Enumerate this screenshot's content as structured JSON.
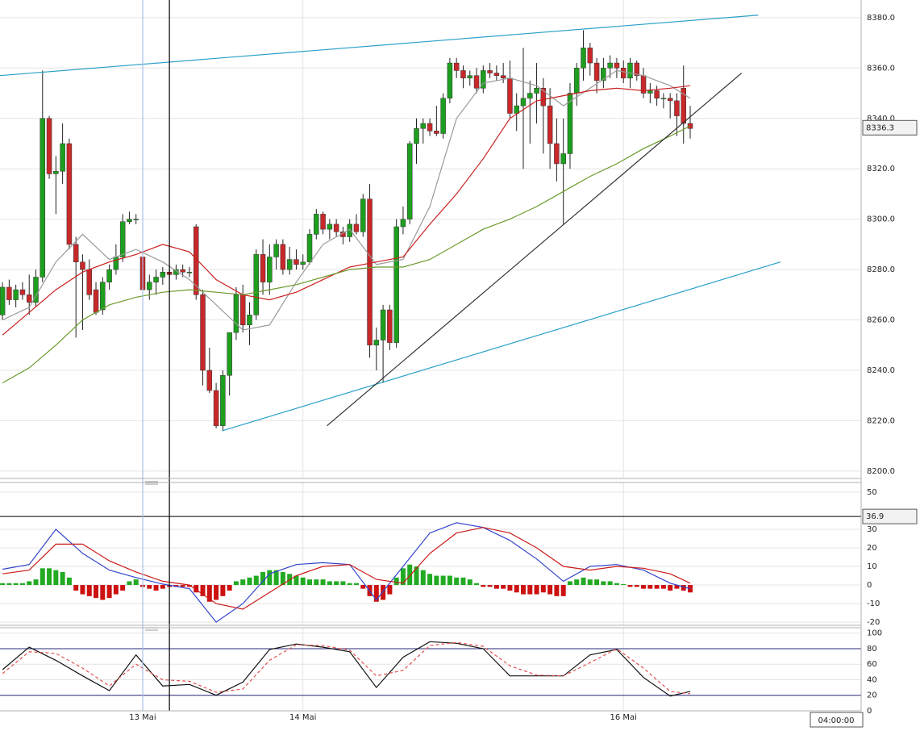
{
  "chart_data": [
    {
      "type": "candlestick",
      "x": [
        0,
        1,
        2,
        3,
        4,
        5,
        6,
        7,
        8,
        9,
        10,
        11,
        12,
        13,
        14,
        15,
        16,
        17,
        18,
        19,
        20,
        21,
        22,
        23,
        24,
        25,
        26,
        27,
        28,
        29,
        30,
        31,
        32,
        33,
        34,
        35,
        36,
        37,
        38,
        39,
        40,
        41,
        42,
        43,
        44,
        45,
        46,
        47,
        48,
        49,
        50,
        51,
        52,
        53,
        54,
        55,
        56,
        57,
        58,
        59,
        60,
        61,
        62,
        63,
        64,
        65,
        66,
        67,
        68,
        69,
        70,
        71,
        72,
        73,
        74,
        75,
        76,
        77,
        78,
        79,
        80,
        81,
        82,
        83,
        84,
        85,
        86,
        87,
        88,
        89,
        90,
        91,
        92,
        93,
        94,
        95,
        96,
        97,
        98,
        99,
        100,
        101,
        102,
        103
      ],
      "open": [
        8262,
        8273,
        8268,
        8272,
        8270,
        8267,
        8277,
        8340,
        8318,
        8319,
        8330,
        8290,
        8283,
        8280,
        8272,
        8264,
        8275,
        8280,
        8285,
        8299,
        8300,
        8285,
        8272,
        8275,
        8277,
        8279,
        8278,
        8280,
        8279,
        8297,
        8270,
        8240,
        8232,
        8218,
        8238,
        8255,
        8270,
        8258,
        8262,
        8286,
        8275,
        8285,
        8290,
        8280,
        8284,
        8282,
        8283,
        8294,
        8302,
        8296,
        8298,
        8295,
        8293,
        8298,
        8295,
        8308,
        8250,
        8252,
        8264,
        8251,
        8297,
        8300,
        8330,
        8336,
        8338,
        8335,
        8334,
        8348,
        8362,
        8359,
        8356,
        8357,
        8352,
        8359,
        8358,
        8357,
        8356,
        8342,
        8345,
        8348,
        8350,
        8352,
        8345,
        8330,
        8322,
        8326,
        8350,
        8360,
        8368,
        8362,
        8355,
        8360,
        8362,
        8360,
        8356,
        8362,
        8357,
        8350,
        8351,
        8348,
        8348,
        8347,
        8352,
        8338
      ],
      "high": [
        8275,
        8276,
        8274,
        8275,
        8278,
        8280,
        8359,
        8341,
        8325,
        8338,
        8332,
        8293,
        8286,
        8284,
        8275,
        8277,
        8282,
        8290,
        8302,
        8303,
        8302,
        8293,
        8278,
        8280,
        8281,
        8282,
        8282,
        8282,
        8281,
        8298,
        8272,
        8249,
        8235,
        8240,
        8255,
        8273,
        8274,
        8267,
        8288,
        8292,
        8290,
        8292,
        8292,
        8289,
        8288,
        8286,
        8296,
        8304,
        8303,
        8300,
        8300,
        8297,
        8300,
        8302,
        8310,
        8314,
        8257,
        8266,
        8266,
        8300,
        8305,
        8331,
        8340,
        8340,
        8340,
        8345,
        8350,
        8364,
        8364,
        8361,
        8359,
        8360,
        8361,
        8362,
        8361,
        8362,
        8363,
        8350,
        8368,
        8355,
        8362,
        8356,
        8352,
        8340,
        8340,
        8354,
        8362,
        8375,
        8370,
        8364,
        8364,
        8365,
        8364,
        8363,
        8364,
        8363,
        8360,
        8354,
        8353,
        8350,
        8350,
        8350,
        8361,
        8345
      ],
      "low": [
        8260,
        8266,
        8265,
        8268,
        8262,
        8265,
        8275,
        8316,
        8302,
        8314,
        8288,
        8253,
        8256,
        8268,
        8262,
        8262,
        8272,
        8278,
        8283,
        8298,
        8298,
        8265,
        8268,
        8270,
        8274,
        8276,
        8276,
        8277,
        8277,
        8268,
        8234,
        8231,
        8217,
        8216,
        8230,
        8252,
        8255,
        8250,
        8260,
        8270,
        8270,
        8280,
        8278,
        8278,
        8280,
        8280,
        8282,
        8292,
        8294,
        8292,
        8293,
        8290,
        8291,
        8294,
        8293,
        8245,
        8240,
        8235,
        8248,
        8249,
        8294,
        8298,
        8322,
        8330,
        8333,
        8333,
        8332,
        8346,
        8356,
        8352,
        8353,
        8350,
        8350,
        8356,
        8355,
        8354,
        8340,
        8335,
        8320,
        8330,
        8338,
        8326,
        8320,
        8315,
        8298,
        8320,
        8345,
        8355,
        8357,
        8350,
        8352,
        8356,
        8356,
        8354,
        8352,
        8355,
        8348,
        8346,
        8345,
        8344,
        8340,
        8333,
        8330,
        8332
      ],
      "close": [
        8273,
        8268,
        8272,
        8270,
        8267,
        8277,
        8340,
        8318,
        8319,
        8330,
        8290,
        8283,
        8280,
        8270,
        8263,
        8275,
        8280,
        8285,
        8299,
        8300,
        8300,
        8272,
        8275,
        8277,
        8279,
        8278,
        8280,
        8279,
        8279,
        8270,
        8240,
        8232,
        8218,
        8238,
        8255,
        8270,
        8258,
        8262,
        8286,
        8275,
        8285,
        8290,
        8280,
        8284,
        8282,
        8283,
        8294,
        8302,
        8296,
        8298,
        8295,
        8293,
        8298,
        8295,
        8308,
        8250,
        8252,
        8264,
        8251,
        8297,
        8300,
        8330,
        8336,
        8338,
        8335,
        8334,
        8348,
        8362,
        8359,
        8356,
        8357,
        8352,
        8359,
        8358,
        8357,
        8356,
        8342,
        8345,
        8348,
        8350,
        8352,
        8345,
        8330,
        8322,
        8326,
        8350,
        8360,
        8368,
        8362,
        8355,
        8360,
        8362,
        8360,
        8356,
        8362,
        8357,
        8350,
        8351,
        8348,
        8348,
        8347,
        8341,
        8338,
        8336
      ],
      "up_color": "#1e9e1e",
      "down_color": "#c8282a",
      "series": [
        {
          "color": "#9a9a9a",
          "x": [
            0,
            4,
            8,
            12,
            16,
            20,
            24,
            28,
            32,
            36,
            40,
            44,
            48,
            52,
            56,
            60,
            64,
            68,
            72,
            76,
            80,
            84,
            88,
            92,
            96,
            100,
            103
          ],
          "values": [
            8260,
            8265,
            8283,
            8294,
            8284,
            8288,
            8283,
            8276,
            8266,
            8256,
            8258,
            8275,
            8290,
            8296,
            8282,
            8284,
            8305,
            8340,
            8354,
            8356,
            8353,
            8345,
            8352,
            8359,
            8357,
            8353,
            8348
          ]
        },
        {
          "color": "#cc2020",
          "x": [
            0,
            4,
            8,
            12,
            16,
            20,
            24,
            28,
            32,
            36,
            40,
            44,
            48,
            52,
            56,
            60,
            64,
            68,
            72,
            76,
            80,
            84,
            88,
            92,
            96,
            100,
            103
          ],
          "values": [
            8254,
            8263,
            8272,
            8279,
            8283,
            8286,
            8290,
            8287,
            8276,
            8270,
            8268,
            8271,
            8276,
            8281,
            8283,
            8285,
            8298,
            8310,
            8324,
            8340,
            8347,
            8349,
            8351,
            8352,
            8351,
            8352,
            8353
          ]
        },
        {
          "color": "#6a9a2a",
          "x": [
            0,
            4,
            8,
            12,
            16,
            20,
            24,
            28,
            32,
            36,
            40,
            44,
            48,
            52,
            56,
            60,
            64,
            68,
            72,
            76,
            80,
            84,
            88,
            92,
            96,
            100,
            103
          ],
          "values": [
            8235,
            8241,
            8250,
            8260,
            8266,
            8269,
            8271,
            8272,
            8271,
            8270,
            8272,
            8274,
            8277,
            8280,
            8281,
            8281,
            8284,
            8290,
            8296,
            8300,
            8305,
            8311,
            8317,
            8322,
            8328,
            8333,
            8337
          ]
        }
      ],
      "trendlines": [
        {
          "color": "#2aa0c8",
          "x": [
            -0.37,
            113.2
          ],
          "y": [
            8357,
            8381
          ]
        },
        {
          "color": "#2aa0c8",
          "x": [
            32.9,
            116.5
          ],
          "y": [
            8216,
            8283
          ]
        },
        {
          "color": "#333333",
          "x": [
            48.6,
            110.7
          ],
          "y": [
            8218,
            8358
          ]
        }
      ],
      "vlines": [
        {
          "x": 21,
          "color": "#a8c0e8"
        },
        {
          "x": 25,
          "color": "#000000"
        }
      ],
      "last_price": 8336.3,
      "xlim": [
        -0.374,
        128.6
      ],
      "xticks": [
        {
          "value": 21,
          "label": "13 Mai"
        },
        {
          "value": 45,
          "label": "14 Mai"
        },
        {
          "value": 93,
          "label": "16 Mai"
        }
      ],
      "ylim": [
        8197.4,
        8387
      ],
      "yticks": [
        {
          "value": 8200,
          "label": "8200.0"
        },
        {
          "value": 8220,
          "label": "8220.0"
        },
        {
          "value": 8240,
          "label": "8240.0"
        },
        {
          "value": 8260,
          "label": "8260.0"
        },
        {
          "value": 8280,
          "label": "8280.0"
        },
        {
          "value": 8300,
          "label": "8300.0"
        },
        {
          "value": 8320,
          "label": "8320.0"
        },
        {
          "value": 8340,
          "label": "8340.0"
        },
        {
          "value": 8360,
          "label": "8360.0"
        },
        {
          "value": 8380,
          "label": "8380.0"
        }
      ]
    },
    {
      "type": "macd",
      "histogram": [
        1,
        1,
        1,
        1,
        2,
        3,
        9,
        9,
        8,
        7,
        4,
        -3,
        -5,
        -6,
        -7,
        -8,
        -7,
        -5,
        -3,
        2,
        3,
        -1,
        -2,
        -3,
        -2,
        -1,
        -1,
        -1,
        -1,
        -4,
        -6,
        -9,
        -8,
        -6,
        -3,
        2,
        3,
        4,
        5,
        7,
        8,
        8,
        7,
        6,
        5,
        4,
        3,
        3,
        3,
        2,
        2,
        2,
        1,
        1,
        -2,
        -6,
        -9,
        -8,
        -5,
        4,
        9,
        11,
        10,
        8,
        6,
        5,
        5,
        5,
        4,
        4,
        3,
        1,
        -1,
        -1,
        -2,
        -2,
        -3,
        -4,
        -5,
        -5,
        -5,
        -4,
        -5,
        -6,
        -6,
        2,
        3,
        4,
        3,
        3,
        2,
        2,
        1,
        0.5,
        -1,
        -1,
        -2,
        -2,
        -2,
        -2,
        -3,
        -2,
        -3,
        -4
      ],
      "up_color": "#22aa22",
      "down_color": "#cc1111",
      "x": [
        0,
        4,
        8,
        12,
        16,
        20,
        24,
        28,
        32,
        36,
        40,
        44,
        48,
        52,
        56,
        60,
        64,
        68,
        72,
        76,
        80,
        84,
        88,
        92,
        96,
        100,
        103
      ],
      "series": [
        {
          "color": "#3344cc",
          "values": [
            8.5,
            11,
            30,
            17,
            8,
            4,
            0.5,
            -2,
            -20,
            -10,
            6,
            11,
            12,
            11,
            -8,
            10,
            28,
            33.5,
            31,
            24,
            14,
            2,
            10,
            11,
            8,
            1,
            -2
          ]
        },
        {
          "color": "#cc1a1a",
          "values": [
            6,
            8,
            22,
            22,
            13,
            7,
            2,
            0,
            -10,
            -13,
            -4,
            5,
            10,
            11,
            3,
            1,
            17,
            28,
            31,
            28,
            20,
            10,
            8,
            10,
            9,
            6,
            1
          ]
        }
      ],
      "cursor_level": 36.9,
      "ylim": [
        -21.7,
        55.2
      ],
      "yticks": [
        -20,
        -10,
        0,
        10,
        20,
        30,
        50
      ]
    },
    {
      "type": "stochastic",
      "x": [
        0,
        4,
        8,
        12,
        16,
        20,
        24,
        28,
        32,
        36,
        40,
        44,
        48,
        52,
        56,
        60,
        64,
        68,
        72,
        76,
        80,
        84,
        88,
        92,
        96,
        100,
        103
      ],
      "series": [
        {
          "color": "#111111",
          "values": [
            53,
            82,
            65,
            45,
            26,
            72,
            32,
            34,
            20,
            37,
            79,
            86,
            82,
            76,
            30,
            69,
            89,
            87,
            80,
            45,
            45,
            45,
            72,
            79,
            43,
            19,
            25
          ]
        },
        {
          "color": "#e05050",
          "dashed": true,
          "values": [
            48,
            76,
            74,
            55,
            32,
            60,
            40,
            38,
            24,
            28,
            65,
            85,
            84,
            78,
            45,
            52,
            84,
            88,
            83,
            58,
            46,
            45,
            62,
            80,
            55,
            25,
            22
          ]
        }
      ],
      "levels": [
        80,
        20
      ],
      "ylim": [
        0,
        107
      ],
      "yticks": [
        0,
        20,
        40,
        60,
        80,
        100
      ]
    }
  ],
  "time_label": "04:00:00"
}
